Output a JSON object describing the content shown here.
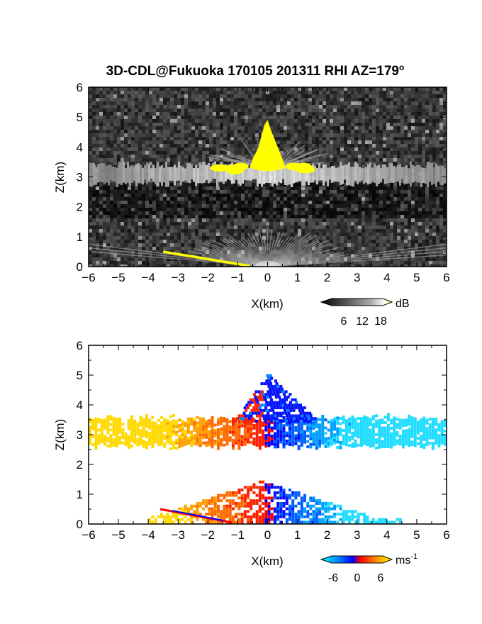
{
  "title": "3D-CDL@Fukuoka 170105 201311 RHI AZ=179",
  "title_suffix": "o",
  "chart_data": [
    {
      "type": "heatmap",
      "panel": "reflectivity",
      "xlabel": "X(km)",
      "ylabel": "Z(km)",
      "xlim": [
        -6,
        6
      ],
      "ylim": [
        0,
        6
      ],
      "xticks": [
        "-6",
        "-5",
        "-4",
        "-3",
        "-2",
        "-1",
        "0",
        "1",
        "2",
        "3",
        "4",
        "5",
        "6"
      ],
      "yticks": [
        "0",
        "1",
        "2",
        "3",
        "4",
        "5",
        "6"
      ],
      "colorbar": {
        "unit": "dB",
        "ticks": [
          "6",
          "12",
          "18"
        ],
        "colors": [
          "#000000",
          "#555555",
          "#aaaaaa",
          "#ffffff",
          "#ffff00"
        ]
      },
      "features": {
        "cloud_layer_km": [
          2.8,
          3.4
        ],
        "bright_core_x_km": [
          -0.6,
          0.6
        ],
        "bright_core_top_km": 4.9,
        "ground_clutter_x_km": [
          -3.5,
          -0.6
        ],
        "background": "noise"
      }
    },
    {
      "type": "heatmap",
      "panel": "doppler_velocity",
      "xlabel": "X(km)",
      "ylabel": "Z(km)",
      "xlim": [
        -6,
        6
      ],
      "ylim": [
        0,
        6
      ],
      "xticks": [
        "-6",
        "-5",
        "-4",
        "-3",
        "-2",
        "-1",
        "0",
        "1",
        "2",
        "3",
        "4",
        "5",
        "6"
      ],
      "yticks": [
        "0",
        "1",
        "2",
        "3",
        "4",
        "5",
        "6"
      ],
      "colorbar": {
        "unit": "ms",
        "unit_exponent": "-1",
        "ticks": [
          "-6",
          "0",
          "6"
        ],
        "colors": [
          "#00ffff",
          "#0080ff",
          "#0000ff",
          "#ff0000",
          "#ff8000",
          "#ffff00"
        ]
      },
      "features": {
        "cloud_layer_km": [
          2.7,
          3.6
        ],
        "updraft_top_km": 5.1,
        "lower_echo_km": [
          0,
          1.5
        ],
        "lower_echo_x_km": [
          -4.0,
          4.5
        ],
        "velocity_sign": "negative_x_warm_colors"
      }
    }
  ]
}
